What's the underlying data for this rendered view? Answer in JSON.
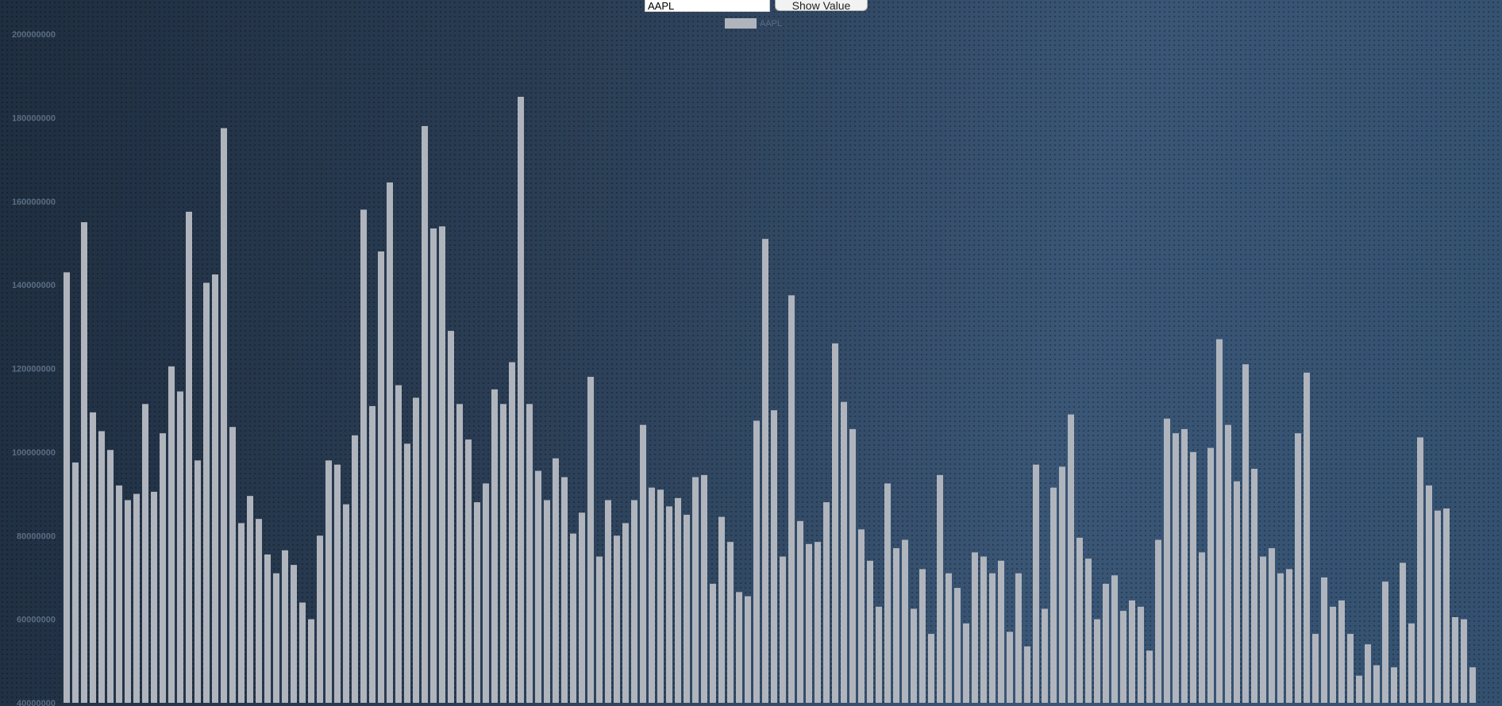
{
  "controls": {
    "symbol_value": "AAPL",
    "button_label": "Show Value"
  },
  "chart_data": {
    "type": "bar",
    "legend": "AAPL",
    "ylim": [
      40000000,
      200000000
    ],
    "yticks": [
      40000000,
      60000000,
      80000000,
      100000000,
      120000000,
      140000000,
      160000000,
      180000000,
      200000000
    ],
    "colors": {
      "bar": "#b0b5bd",
      "legend_swatch": "#b0b5bd",
      "tick_text": "#5b6d82"
    },
    "series": [
      {
        "name": "AAPL",
        "values": [
          143000000,
          97500000,
          155000000,
          109500000,
          105000000,
          100500000,
          92000000,
          88500000,
          90000000,
          111500000,
          90500000,
          104500000,
          120500000,
          114500000,
          157500000,
          98000000,
          140500000,
          142500000,
          177500000,
          106000000,
          83000000,
          89500000,
          84000000,
          75500000,
          71000000,
          76500000,
          73000000,
          64000000,
          60000000,
          80000000,
          98000000,
          97000000,
          87500000,
          104000000,
          158000000,
          111000000,
          148000000,
          164500000,
          116000000,
          102000000,
          113000000,
          178000000,
          153500000,
          154000000,
          129000000,
          111500000,
          103000000,
          88000000,
          92500000,
          115000000,
          111500000,
          121500000,
          185000000,
          111500000,
          95500000,
          88500000,
          98500000,
          94000000,
          80500000,
          85500000,
          118000000,
          75000000,
          88500000,
          80000000,
          83000000,
          88500000,
          106500000,
          91500000,
          91000000,
          87000000,
          89000000,
          85000000,
          94000000,
          94500000,
          68500000,
          84500000,
          78500000,
          66500000,
          65500000,
          107500000,
          151000000,
          110000000,
          75000000,
          137500000,
          83500000,
          78000000,
          78500000,
          88000000,
          126000000,
          112000000,
          105500000,
          81500000,
          74000000,
          63000000,
          92500000,
          77000000,
          79000000,
          62500000,
          72000000,
          56500000,
          94500000,
          71000000,
          67500000,
          59000000,
          76000000,
          75000000,
          71000000,
          74000000,
          57000000,
          71000000,
          53500000,
          97000000,
          62500000,
          91500000,
          96500000,
          109000000,
          79500000,
          74500000,
          60000000,
          68500000,
          70500000,
          62000000,
          64500000,
          63000000,
          52500000,
          79000000,
          108000000,
          104500000,
          105500000,
          100000000,
          76000000,
          101000000,
          127000000,
          106500000,
          93000000,
          121000000,
          96000000,
          75000000,
          77000000,
          71000000,
          72000000,
          104500000,
          119000000,
          56500000,
          70000000,
          63000000,
          64500000,
          56500000,
          46500000,
          54000000,
          49000000,
          69000000,
          48500000,
          73500000,
          59000000,
          103500000,
          92000000,
          86000000,
          86500000,
          60500000,
          60000000,
          48500000
        ]
      }
    ]
  }
}
